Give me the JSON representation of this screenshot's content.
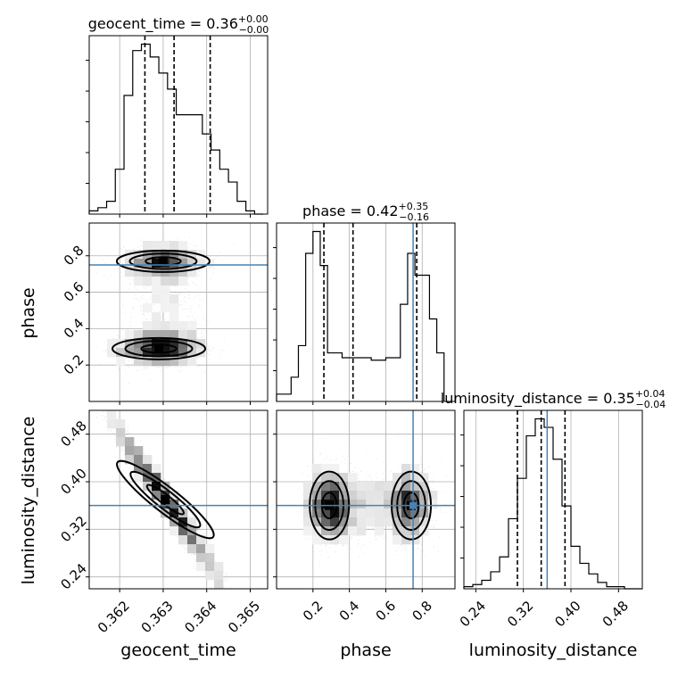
{
  "chart_data": {
    "type": "corner",
    "parameters": [
      "geocent_time",
      "phase",
      "luminosity_distance"
    ],
    "grid": true,
    "injection_color": "#4682b4",
    "titles": [
      {
        "name": "geocent_time",
        "value": "0.36",
        "plus": "+0.00",
        "minus": "−0.00"
      },
      {
        "name": "phase",
        "value": "0.42",
        "plus": "+0.35",
        "minus": "−0.16"
      },
      {
        "name": "luminosity_distance",
        "value": "0.35",
        "plus": "+0.04",
        "minus": "−0.04"
      }
    ],
    "axes": {
      "geocent_time": {
        "range": [
          0.3613,
          0.3654
        ],
        "ticks": [
          0.362,
          0.363,
          0.364,
          0.365
        ],
        "tick_labels": [
          "0.362",
          "0.363",
          "0.364",
          "0.365"
        ],
        "xlabel": "geocent_time"
      },
      "phase": {
        "range": [
          0.0,
          0.98
        ],
        "ticks": [
          0.2,
          0.4,
          0.6,
          0.8
        ],
        "tick_labels": [
          "0.2",
          "0.4",
          "0.6",
          "0.8"
        ],
        "xlabel": "phase",
        "ylabel": "phase"
      },
      "luminosity_distance": {
        "range": [
          0.22,
          0.52
        ],
        "ticks": [
          0.24,
          0.32,
          0.4,
          0.48
        ],
        "tick_labels": [
          "0.24",
          "0.32",
          "0.40",
          "0.48"
        ],
        "xlabel": "luminosity_distance",
        "ylabel": "luminosity_distance"
      }
    },
    "injection": {
      "phase": 0.75,
      "luminosity_distance": 0.36
    },
    "quantiles": {
      "geocent_time": [
        0.36258,
        0.36325,
        0.36408
      ],
      "phase": [
        0.26,
        0.42,
        0.77
      ],
      "luminosity_distance": [
        0.31,
        0.35,
        0.39
      ]
    },
    "histograms": {
      "geocent_time": {
        "bin_edges": [
          0.3613,
          0.3615,
          0.3617,
          0.3619,
          0.3621,
          0.3623,
          0.3625,
          0.3627,
          0.3629,
          0.3631,
          0.3633,
          0.3635,
          0.3637,
          0.3639,
          0.3641,
          0.3643,
          0.3645,
          0.3647,
          0.3649,
          0.3651,
          0.3653
        ],
        "counts": [
          1,
          2,
          4,
          14,
          37,
          51,
          53,
          49,
          44,
          39,
          31,
          31,
          31,
          25,
          20,
          14,
          10,
          4,
          1,
          0
        ]
      },
      "phase": {
        "bin_edges": [
          0.0,
          0.04,
          0.08,
          0.12,
          0.16,
          0.2,
          0.24,
          0.28,
          0.32,
          0.36,
          0.4,
          0.44,
          0.48,
          0.52,
          0.56,
          0.6,
          0.64,
          0.68,
          0.72,
          0.76,
          0.8,
          0.84,
          0.88,
          0.92
        ],
        "counts": [
          3,
          3,
          10,
          23,
          61,
          70,
          56,
          20,
          20,
          18,
          18,
          18,
          18,
          17,
          17,
          18,
          18,
          40,
          61,
          52,
          52,
          34,
          20
        ]
      },
      "luminosity_distance": {
        "bin_edges": [
          0.22,
          0.235,
          0.25,
          0.265,
          0.28,
          0.295,
          0.31,
          0.325,
          0.34,
          0.355,
          0.37,
          0.385,
          0.4,
          0.415,
          0.43,
          0.445,
          0.46,
          0.475,
          0.49,
          0.505,
          0.52
        ],
        "counts": [
          1,
          2,
          4,
          8,
          15,
          33,
          52,
          72,
          80,
          76,
          61,
          39,
          20,
          12,
          7,
          3,
          1,
          1,
          0,
          0
        ]
      }
    },
    "modes_2d": {
      "phase_vs_geocent_time": [
        {
          "x": 0.3629,
          "y": 0.29
        },
        {
          "x": 0.363,
          "y": 0.77
        }
      ],
      "luminosity_distance_vs_geocent_time": [
        {
          "x": 0.36305,
          "y": 0.37
        }
      ],
      "luminosity_distance_vs_phase": [
        {
          "x": 0.29,
          "y": 0.36
        },
        {
          "x": 0.74,
          "y": 0.36
        }
      ]
    }
  }
}
